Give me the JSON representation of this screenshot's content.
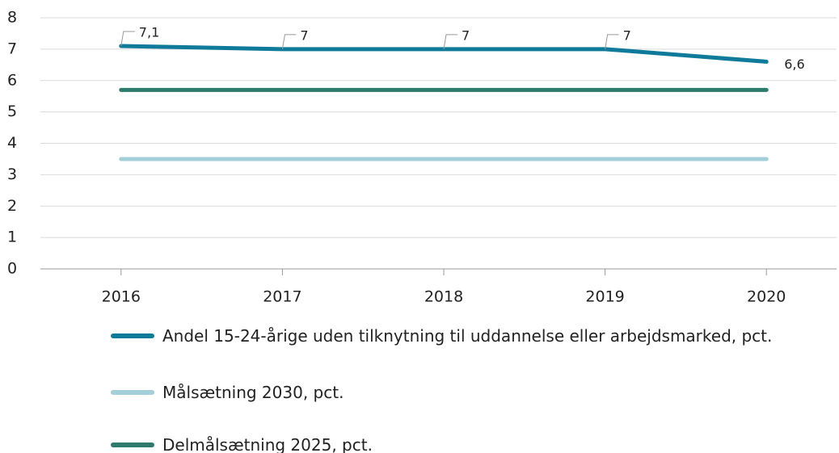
{
  "chart_data": {
    "type": "line",
    "categories": [
      "2016",
      "2017",
      "2018",
      "2019",
      "2020"
    ],
    "series": [
      {
        "name": "Andel 15-24-årige uden tilknytning til uddannelse eller arbejdsmarked, pct.",
        "color": "#0f7a99",
        "values": [
          7.1,
          7,
          7,
          7,
          6.6
        ],
        "value_labels": [
          "7,1",
          "7",
          "7",
          "7",
          "6,6"
        ]
      },
      {
        "name": "Målsætning 2030, pct.",
        "color": "#a3cfd9",
        "values": [
          3.5,
          3.5,
          3.5,
          3.5,
          3.5
        ]
      },
      {
        "name": "Delmålsætning 2025, pct.",
        "color": "#2e7a6c",
        "values": [
          5.7,
          5.7,
          5.7,
          5.7,
          5.7
        ]
      }
    ],
    "ylim": [
      0,
      8
    ],
    "yticks": [
      0,
      1,
      2,
      3,
      4,
      5,
      6,
      7,
      8
    ],
    "grid": true
  }
}
